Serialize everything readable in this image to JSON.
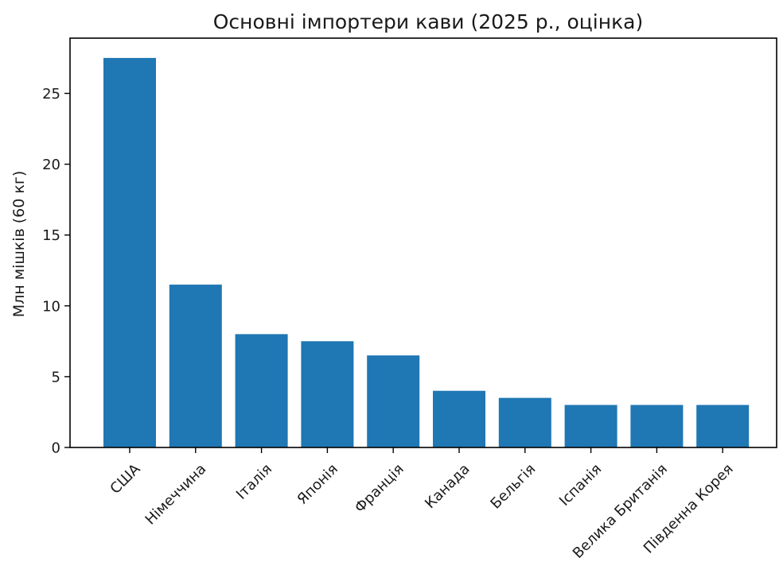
{
  "chart_data": {
    "type": "bar",
    "title": "Основні імпортери кави (2025 р., оцінка)",
    "xlabel": "",
    "ylabel": "Млн мішків (60 кг)",
    "categories": [
      "США",
      "Німеччина",
      "Італія",
      "Японія",
      "Франція",
      "Канада",
      "Бельгія",
      "Іспанія",
      "Велика Британія",
      "Південна Корея"
    ],
    "values": [
      27.5,
      11.5,
      8.0,
      7.5,
      6.5,
      4.0,
      3.5,
      3.0,
      3.0,
      3.0
    ],
    "yticks": [
      0,
      5,
      10,
      15,
      20,
      25
    ],
    "ylim": [
      0,
      28.9
    ],
    "bar_color": "#1f77b4",
    "grid": false,
    "legend": "none"
  }
}
